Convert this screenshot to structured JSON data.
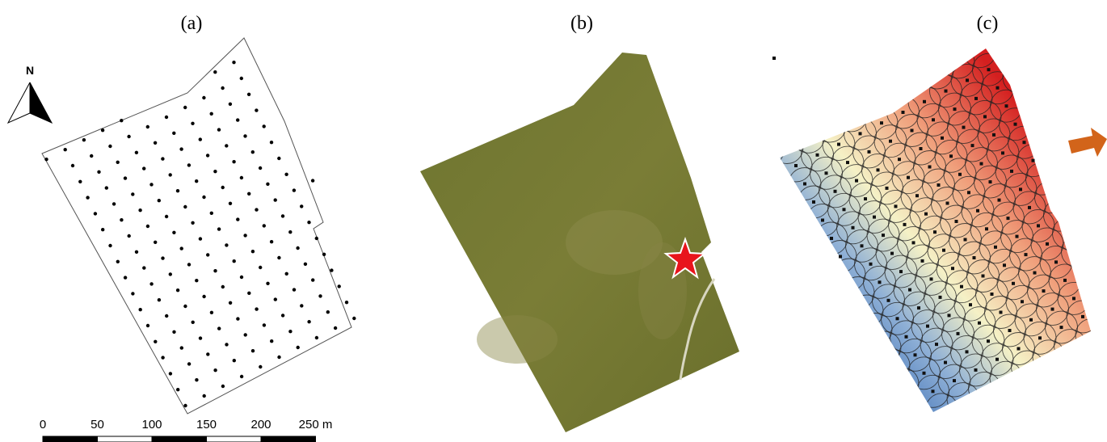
{
  "panels": [
    {
      "label": "(a)"
    },
    {
      "label": "(b)"
    },
    {
      "label": "(c)"
    }
  ],
  "north_arrow": {
    "label": "N"
  },
  "scale_bar": {
    "labels": [
      "0",
      "50",
      "100",
      "150",
      "200",
      "250 m"
    ]
  }
}
